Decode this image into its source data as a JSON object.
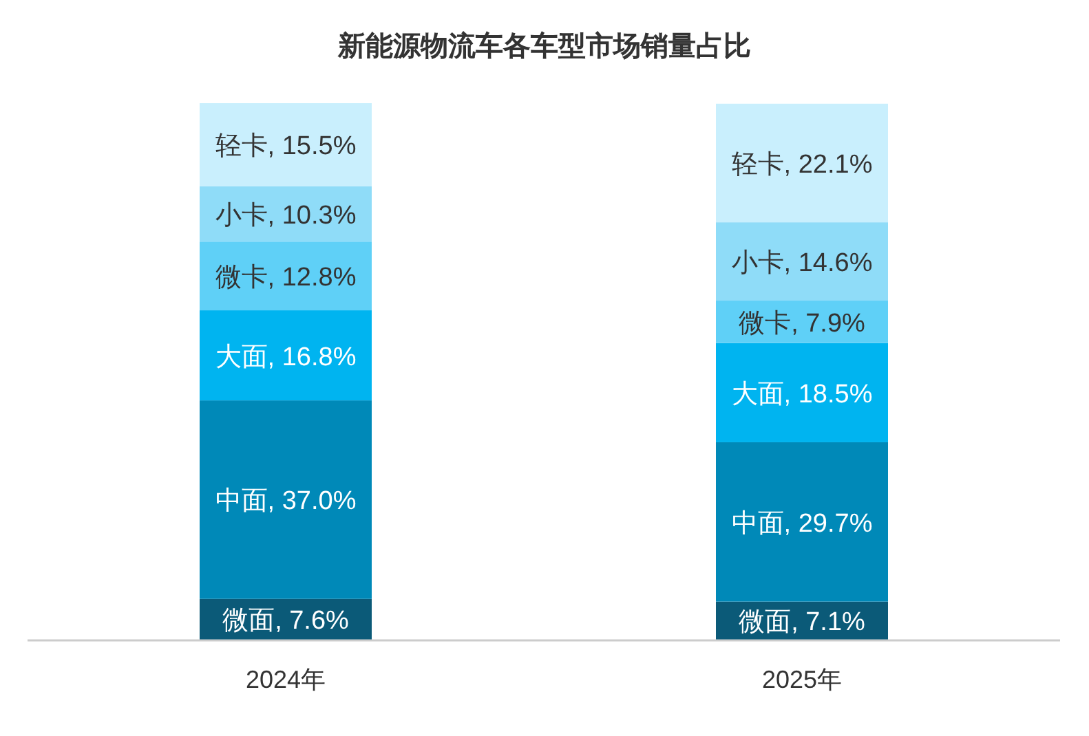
{
  "chart_data": {
    "type": "bar",
    "title": "新能源物流车各车型市场销量占比",
    "categories": [
      "2024年",
      "2025年"
    ],
    "stacked": true,
    "series": [
      {
        "color": "#0b5a78",
        "values": [
          7.6,
          7.1
        ],
        "value_labels": [
          "微面, 7.6%",
          "微面, 7.1%"
        ]
      },
      {
        "color": "#0089b8",
        "values": [
          37.0,
          29.7
        ],
        "value_labels": [
          "中面, 37.0%",
          "中面, 29.7%"
        ]
      },
      {
        "color": "#00b4f0",
        "values": [
          16.8,
          18.5
        ],
        "value_labels": [
          "大面, 16.8%",
          "大面, 18.5%"
        ]
      },
      {
        "color": "#5fd0f7",
        "values": [
          12.8,
          7.9
        ],
        "value_labels": [
          "微卡, 12.8%",
          "微卡, 7.9%"
        ]
      },
      {
        "color": "#8fdcf8",
        "values": [
          10.3,
          14.6
        ],
        "value_labels": [
          "小卡, 10.3%",
          "小卡, 14.6%"
        ]
      },
      {
        "color": "#c9effd",
        "values": [
          15.5,
          22.1
        ],
        "value_labels": [
          "轻卡, 15.5%",
          "轻卡, 22.1%"
        ]
      }
    ]
  }
}
